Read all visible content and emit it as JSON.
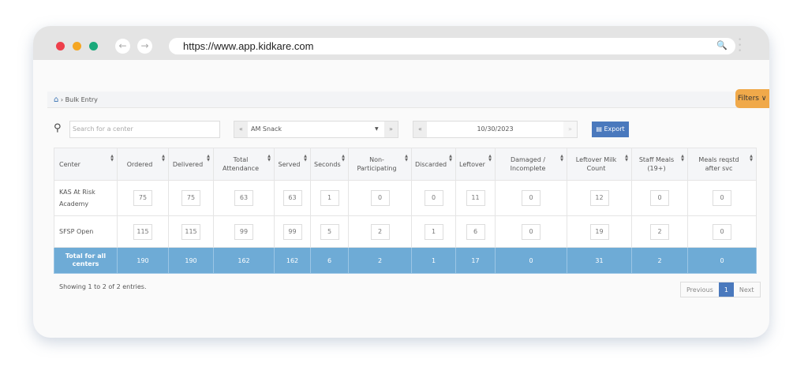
{
  "browser": {
    "url": "https://www.app.kidkare.com",
    "colors": {
      "close": "#ee3f4b",
      "minimize": "#f5a623",
      "maximize": "#1aa97b"
    }
  },
  "breadcrumb": {
    "items": [
      "Bulk Entry"
    ]
  },
  "filters_label": "Filters",
  "toolbar": {
    "search_placeholder": "Search for a center",
    "meal": "AM Snack",
    "date": "10/30/2023",
    "export_label": "Export"
  },
  "table": {
    "headers": [
      "Center",
      "Ordered",
      "Delivered",
      "Total Attendance",
      "Served",
      "Seconds",
      "Non-Participating",
      "Discarded",
      "Leftover",
      "Damaged / Incomplete",
      "Leftover Milk Count",
      "Staff Meals (19+)",
      "Meals reqstd after svc"
    ],
    "rows": [
      {
        "center": "KAS At Risk Academy",
        "values": [
          "75",
          "75",
          "63",
          "63",
          "1",
          "0",
          "0",
          "11",
          "0",
          "12",
          "0",
          "0"
        ]
      },
      {
        "center": "SFSP Open",
        "values": [
          "115",
          "115",
          "99",
          "99",
          "5",
          "2",
          "1",
          "6",
          "0",
          "19",
          "2",
          "0"
        ]
      }
    ],
    "total": {
      "label": "Total for all centers",
      "values": [
        "190",
        "190",
        "162",
        "162",
        "6",
        "2",
        "1",
        "17",
        "0",
        "31",
        "2",
        "0"
      ]
    }
  },
  "footer": {
    "showing": "Showing 1 to 2 of 2 entries.",
    "previous": "Previous",
    "page": "1",
    "next": "Next"
  },
  "accent": "#4a79bd",
  "total_row_color": "#6eabd6"
}
